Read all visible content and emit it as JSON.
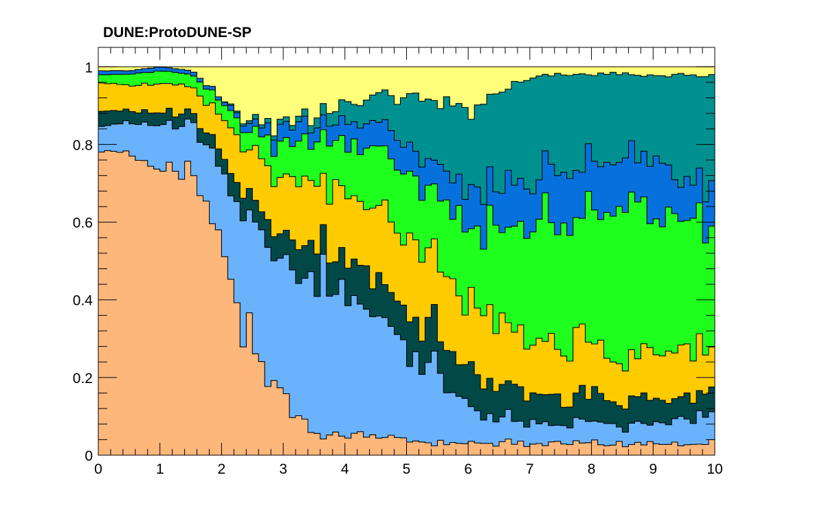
{
  "title": "DUNE:ProtoDUNE-SP",
  "chart_data": {
    "type": "area",
    "title": "DUNE:ProtoDUNE-SP",
    "xlabel": "",
    "ylabel": "",
    "xlim": [
      0,
      10
    ],
    "ylim": [
      0,
      1.05
    ],
    "x": [
      0,
      0.5,
      1,
      1.5,
      2,
      2.5,
      3,
      3.5,
      4,
      4.5,
      5,
      5.5,
      6,
      6.5,
      7,
      7.5,
      8,
      8.5,
      9,
      9.5,
      10
    ],
    "x_ticks": [
      "0",
      "1",
      "2",
      "3",
      "4",
      "5",
      "6",
      "7",
      "8",
      "9",
      "10"
    ],
    "y_ticks": [
      "0",
      "0.2",
      "0.4",
      "0.6",
      "0.8",
      "1"
    ],
    "x_tick_values": [
      0,
      1,
      2,
      3,
      4,
      5,
      6,
      7,
      8,
      9,
      10
    ],
    "y_tick_values": [
      0,
      0.2,
      0.4,
      0.6,
      0.8,
      1
    ],
    "grid": false,
    "legend": "none",
    "stacked": true,
    "series": [
      {
        "color": "#fdb77b",
        "values": [
          0.79,
          0.77,
          0.76,
          0.72,
          0.53,
          0.28,
          0.14,
          0.06,
          0.05,
          0.05,
          0.04,
          0.03,
          0.03,
          0.03,
          0.03,
          0.03,
          0.03,
          0.03,
          0.03,
          0.03,
          0.03
        ]
      },
      {
        "color": "#6ab3fc",
        "values": [
          0.06,
          0.08,
          0.1,
          0.13,
          0.2,
          0.32,
          0.38,
          0.4,
          0.37,
          0.32,
          0.25,
          0.2,
          0.09,
          0.06,
          0.05,
          0.05,
          0.05,
          0.05,
          0.05,
          0.06,
          0.07
        ]
      },
      {
        "color": "#024847",
        "values": [
          0.04,
          0.03,
          0.03,
          0.03,
          0.04,
          0.06,
          0.06,
          0.09,
          0.09,
          0.1,
          0.1,
          0.1,
          0.1,
          0.09,
          0.08,
          0.07,
          0.07,
          0.07,
          0.06,
          0.06,
          0.06
        ]
      },
      {
        "color": "#fdcb00",
        "values": [
          0.07,
          0.07,
          0.07,
          0.07,
          0.09,
          0.11,
          0.14,
          0.16,
          0.17,
          0.18,
          0.19,
          0.17,
          0.17,
          0.17,
          0.15,
          0.14,
          0.13,
          0.12,
          0.12,
          0.11,
          0.1
        ]
      },
      {
        "color": "#1eff1e",
        "values": [
          0.02,
          0.03,
          0.03,
          0.03,
          0.04,
          0.06,
          0.08,
          0.1,
          0.13,
          0.14,
          0.16,
          0.17,
          0.19,
          0.25,
          0.31,
          0.32,
          0.34,
          0.36,
          0.37,
          0.38,
          0.34
        ]
      },
      {
        "color": "#0671dc",
        "values": [
          0.01,
          0.01,
          0.01,
          0.01,
          0.01,
          0.02,
          0.04,
          0.04,
          0.05,
          0.06,
          0.06,
          0.08,
          0.09,
          0.11,
          0.11,
          0.13,
          0.12,
          0.13,
          0.14,
          0.1,
          0.08
        ]
      },
      {
        "color": "#009090",
        "values": [
          0.0,
          0.0,
          0.0,
          0.0,
          0.0,
          0.01,
          0.01,
          0.02,
          0.05,
          0.08,
          0.12,
          0.17,
          0.21,
          0.23,
          0.24,
          0.24,
          0.24,
          0.22,
          0.21,
          0.24,
          0.3
        ]
      },
      {
        "color": "#ffff7a",
        "values": [
          0.01,
          0.01,
          0.0,
          0.01,
          0.08,
          0.14,
          0.15,
          0.13,
          0.09,
          0.07,
          0.08,
          0.08,
          0.12,
          0.06,
          0.03,
          0.02,
          0.02,
          0.02,
          0.02,
          0.02,
          0.02
        ]
      }
    ]
  }
}
